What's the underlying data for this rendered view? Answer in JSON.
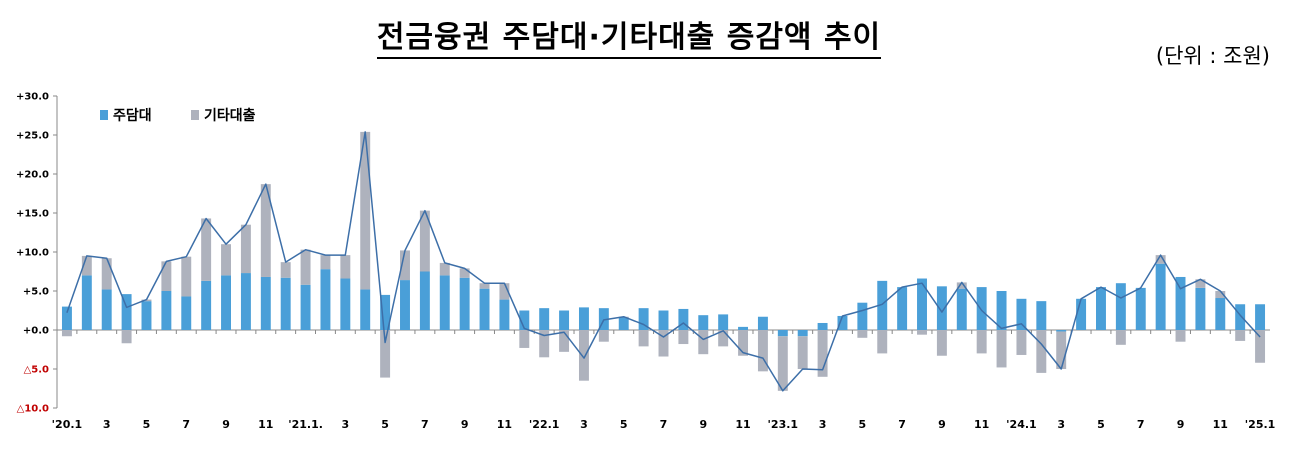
{
  "title": "전금융권 주담대·기타대출 증감액 추이",
  "unit": "(단위 : 조원)",
  "colors": {
    "mortgage": "#4a9fd8",
    "other": "#aeb2bd",
    "total_line": "#3d6fa8"
  },
  "chart_data": {
    "type": "bar",
    "stacked": true,
    "ylim": [
      -10,
      30
    ],
    "ytick_labels": [
      "△10.0",
      "△5.0",
      "+0.0",
      "+5.0",
      "+10.0",
      "+15.0",
      "+20.0",
      "+25.0",
      "+30.0"
    ],
    "ytick_values": [
      -10,
      -5,
      0,
      5,
      10,
      15,
      20,
      25,
      30
    ],
    "xtick_labels": [
      "'20.1",
      "3",
      "5",
      "7",
      "9",
      "11",
      "'21.1.",
      "3",
      "5",
      "7",
      "9",
      "11",
      "'22.1",
      "3",
      "5",
      "7",
      "9",
      "11",
      "'23.1",
      "3",
      "5",
      "7",
      "9",
      "11",
      "'24.1",
      "3",
      "5",
      "7",
      "9",
      "11",
      "'25.1"
    ],
    "legend": {
      "position": "top-left",
      "entries": [
        "주담대",
        "기타대출"
      ]
    },
    "series": [
      {
        "name": "주담대",
        "values": [
          3.0,
          7.0,
          5.2,
          4.6,
          3.7,
          5.0,
          4.3,
          6.3,
          7.0,
          7.3,
          6.8,
          6.7,
          5.8,
          7.8,
          6.6,
          5.2,
          4.5,
          6.4,
          7.5,
          7.0,
          6.7,
          5.3,
          3.9,
          2.5,
          2.8,
          2.5,
          2.9,
          2.8,
          1.6,
          2.8,
          2.5,
          2.7,
          1.9,
          2.0,
          0.4,
          1.7,
          -0.8,
          -0.8,
          0.9,
          1.8,
          3.5,
          6.3,
          5.5,
          6.6,
          5.6,
          5.3,
          5.5,
          5.0,
          4.0,
          3.7,
          -0.2,
          4.0,
          5.5,
          6.0,
          5.4,
          8.5,
          6.8,
          5.4,
          4.1,
          3.3,
          3.3
        ]
      },
      {
        "name": "기타대출",
        "values": [
          -0.8,
          2.5,
          4.0,
          -1.7,
          0.2,
          3.8,
          5.1,
          8.0,
          4.0,
          6.2,
          11.9,
          2.0,
          4.5,
          1.8,
          3.0,
          20.2,
          -6.1,
          3.8,
          7.8,
          1.6,
          1.2,
          0.7,
          2.1,
          -2.3,
          -3.5,
          -2.8,
          -6.5,
          -1.5,
          0.1,
          -2.1,
          -3.4,
          -1.8,
          -3.1,
          -2.1,
          -3.3,
          -5.3,
          -7.0,
          -4.2,
          -6.0,
          0.0,
          -1.0,
          -3.0,
          0.0,
          -0.6,
          -3.3,
          0.8,
          -3.0,
          -4.8,
          -3.2,
          -5.5,
          -4.8,
          0.0,
          0.0,
          -1.9,
          0.0,
          1.1,
          -1.5,
          1.1,
          0.9,
          -1.4,
          -4.2
        ]
      }
    ],
    "line": {
      "name": "total",
      "values": [
        2.2,
        9.5,
        9.2,
        2.9,
        3.9,
        8.8,
        9.4,
        14.3,
        11.0,
        13.5,
        18.7,
        8.7,
        10.3,
        9.6,
        9.6,
        25.4,
        -1.6,
        10.2,
        15.3,
        8.6,
        7.9,
        6.0,
        6.0,
        0.2,
        -0.7,
        -0.3,
        -3.6,
        1.3,
        1.7,
        0.7,
        -0.9,
        0.9,
        -1.2,
        -0.1,
        -2.9,
        -3.6,
        -7.8,
        -5.0,
        -5.1,
        1.8,
        2.5,
        3.3,
        5.5,
        6.0,
        2.3,
        6.1,
        2.5,
        0.2,
        0.8,
        -1.8,
        -5.0,
        4.0,
        5.5,
        4.1,
        5.4,
        9.6,
        5.3,
        6.5,
        5.0,
        1.9,
        -0.9
      ]
    }
  }
}
